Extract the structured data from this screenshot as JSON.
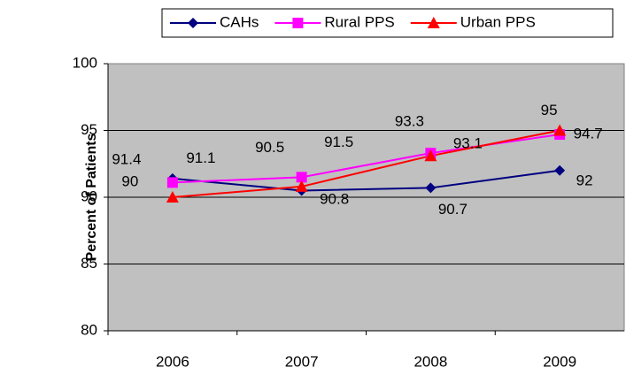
{
  "chart_data": {
    "type": "line",
    "y_label": "Percent of Patients",
    "categories": [
      "2006",
      "2007",
      "2008",
      "2009"
    ],
    "series": [
      {
        "name": "CAHs",
        "color": "#000080",
        "marker": "diamond",
        "values": [
          91.4,
          90.5,
          90.7,
          92
        ]
      },
      {
        "name": "Rural PPS",
        "color": "#ff00ff",
        "marker": "square",
        "values": [
          91.1,
          91.5,
          93.3,
          94.7
        ]
      },
      {
        "name": "Urban PPS",
        "color": "#ff0000",
        "marker": "triangle",
        "values": [
          90,
          90.8,
          93.1,
          95
        ]
      }
    ],
    "ylim": [
      80,
      100
    ],
    "yticks": [
      80,
      85,
      90,
      95,
      100
    ],
    "grid": true,
    "legend": "top"
  }
}
